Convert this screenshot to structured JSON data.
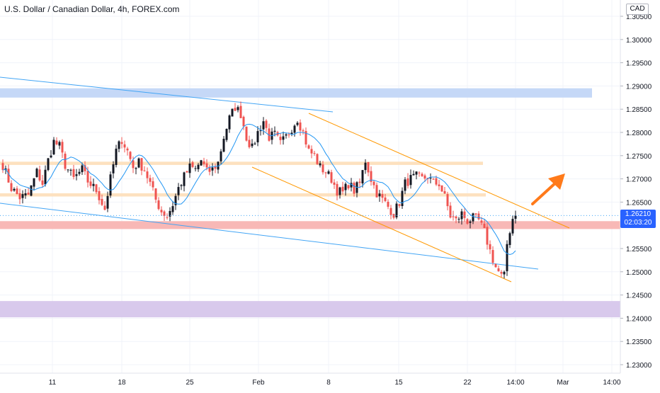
{
  "header": {
    "title": "U.S. Dollar / Canadian Dollar, 4h, FOREX.com",
    "currency": "CAD"
  },
  "last_price": {
    "value": "1.26210",
    "countdown": "02:03:20",
    "color": "#2962ff"
  },
  "colors": {
    "bull": "#131722",
    "bear": "#ef5350",
    "ma": "#2196f3",
    "resistance_zone": "#c5d8f7",
    "orange_zone": "#fde1bf",
    "red_zone": "#f8b8b6",
    "purple_zone": "#d8c9ec",
    "trendline_blue": "#42a5f5",
    "channel_orange": "#ff9800",
    "arrow": "#ff7a1a"
  },
  "chart_data": {
    "type": "candlestick",
    "title": "U.S. Dollar / Canadian Dollar, 4h, FOREX.com",
    "y_axis": {
      "range": [
        1.2265,
        1.3065
      ],
      "ticks": [
        "1.30500",
        "1.30000",
        "1.29500",
        "1.29000",
        "1.28500",
        "1.28000",
        "1.27500",
        "1.27000",
        "1.26500",
        "1.26000",
        "1.25500",
        "1.25000",
        "1.24500",
        "1.24000",
        "1.23500",
        "1.23000"
      ],
      "side": "right"
    },
    "x_axis": {
      "ticks": [
        "11",
        "18",
        "25",
        "Feb",
        "8",
        "15",
        "22",
        "14:00",
        "Mar",
        "14:00"
      ]
    },
    "close_anchors": [
      [
        0,
        1.273
      ],
      [
        3,
        1.268
      ],
      [
        6,
        1.266
      ],
      [
        9,
        1.2665
      ],
      [
        12,
        1.2715
      ],
      [
        14,
        1.269
      ],
      [
        16,
        1.274
      ],
      [
        18,
        1.278
      ],
      [
        20,
        1.277
      ],
      [
        22,
        1.273
      ],
      [
        25,
        1.27
      ],
      [
        28,
        1.272
      ],
      [
        30,
        1.2695
      ],
      [
        33,
        1.2675
      ],
      [
        36,
        1.2635
      ],
      [
        38,
        1.27
      ],
      [
        40,
        1.276
      ],
      [
        42,
        1.2785
      ],
      [
        44,
        1.276
      ],
      [
        46,
        1.2725
      ],
      [
        48,
        1.2735
      ],
      [
        50,
        1.272
      ],
      [
        52,
        1.269
      ],
      [
        54,
        1.2655
      ],
      [
        56,
        1.263
      ],
      [
        58,
        1.262
      ],
      [
        60,
        1.2645
      ],
      [
        62,
        1.268
      ],
      [
        64,
        1.2705
      ],
      [
        66,
        1.2725
      ],
      [
        68,
        1.272
      ],
      [
        70,
        1.274
      ],
      [
        72,
        1.2715
      ],
      [
        74,
        1.272
      ],
      [
        76,
        1.2735
      ],
      [
        78,
        1.279
      ],
      [
        80,
        1.283
      ],
      [
        82,
        1.2855
      ],
      [
        84,
        1.284
      ],
      [
        86,
        1.279
      ],
      [
        88,
        1.2765
      ],
      [
        90,
        1.28
      ],
      [
        92,
        1.2825
      ],
      [
        94,
        1.279
      ],
      [
        96,
        1.2795
      ],
      [
        98,
        1.2775
      ],
      [
        100,
        1.279
      ],
      [
        102,
        1.281
      ],
      [
        104,
        1.283
      ],
      [
        106,
        1.28
      ],
      [
        108,
        1.276
      ],
      [
        110,
        1.275
      ],
      [
        112,
        1.2725
      ],
      [
        114,
        1.2715
      ],
      [
        116,
        1.27
      ],
      [
        118,
        1.2675
      ],
      [
        120,
        1.267
      ],
      [
        122,
        1.269
      ],
      [
        124,
        1.2675
      ],
      [
        126,
        1.269
      ],
      [
        128,
        1.274
      ],
      [
        130,
        1.27
      ],
      [
        132,
        1.267
      ],
      [
        134,
        1.2655
      ],
      [
        136,
        1.264
      ],
      [
        138,
        1.2625
      ],
      [
        140,
        1.265
      ],
      [
        142,
        1.269
      ],
      [
        144,
        1.27
      ],
      [
        146,
        1.2705
      ],
      [
        148,
        1.27
      ],
      [
        150,
        1.2705
      ],
      [
        152,
        1.269
      ],
      [
        154,
        1.269
      ],
      [
        156,
        1.266
      ],
      [
        158,
        1.262
      ],
      [
        160,
        1.261
      ],
      [
        162,
        1.2625
      ],
      [
        164,
        1.261
      ],
      [
        166,
        1.2615
      ],
      [
        168,
        1.261
      ],
      [
        170,
        1.2585
      ],
      [
        172,
        1.2545
      ],
      [
        174,
        1.251
      ],
      [
        176,
        1.249
      ],
      [
        177,
        1.249
      ],
      [
        178,
        1.256
      ],
      [
        179,
        1.259
      ],
      [
        180,
        1.2615
      ],
      [
        181,
        1.2621
      ]
    ],
    "candle_count": 182,
    "moving_average": {
      "name": "",
      "period": 10
    },
    "zones": [
      {
        "name": "resistance-zone-blue",
        "from": 1.2875,
        "to": 1.2895
      },
      {
        "name": "zone-orange-upper",
        "from": 1.273,
        "to": 1.2737
      },
      {
        "name": "zone-orange-lower",
        "from": 1.2662,
        "to": 1.2669
      },
      {
        "name": "zone-red",
        "from": 1.2592,
        "to": 1.2609
      },
      {
        "name": "zone-purple",
        "from": 1.2402,
        "to": 1.2437
      }
    ],
    "grid": true,
    "legend": "none"
  }
}
